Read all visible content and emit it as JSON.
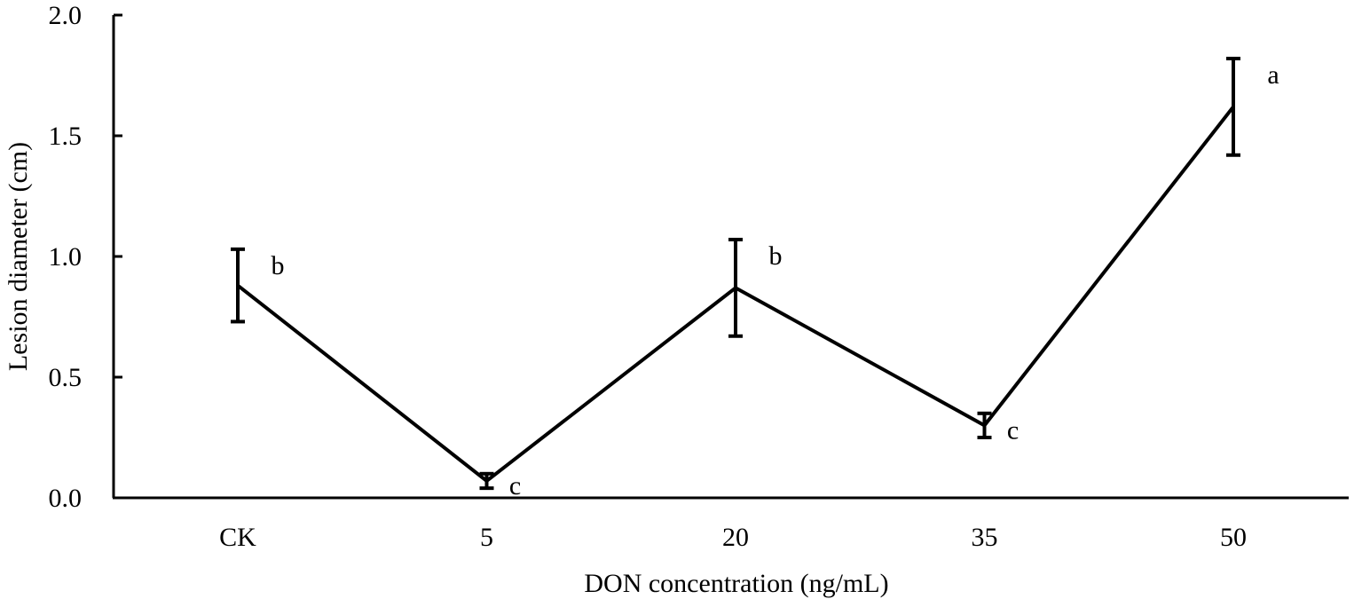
{
  "chart_data": {
    "type": "line",
    "categories": [
      "CK",
      "5",
      "20",
      "35",
      "50"
    ],
    "series": [
      {
        "values": [
          0.88,
          0.07,
          0.87,
          0.3,
          1.62
        ],
        "error": [
          0.15,
          0.03,
          0.2,
          0.05,
          0.2
        ],
        "significance": [
          "b",
          "c",
          "b",
          "c",
          "a"
        ]
      }
    ],
    "xlabel": "DON concentration (ng/mL)",
    "ylabel": "Lesion diameter (cm)",
    "ylim": [
      0,
      2.0
    ],
    "yticks": [
      "0.0",
      "0.5",
      "1.0",
      "1.5",
      "2.0"
    ],
    "ytick_values": [
      0,
      0.5,
      1.0,
      1.5,
      2.0
    ],
    "grid": false,
    "legend": "none",
    "line_color": "#000000"
  }
}
